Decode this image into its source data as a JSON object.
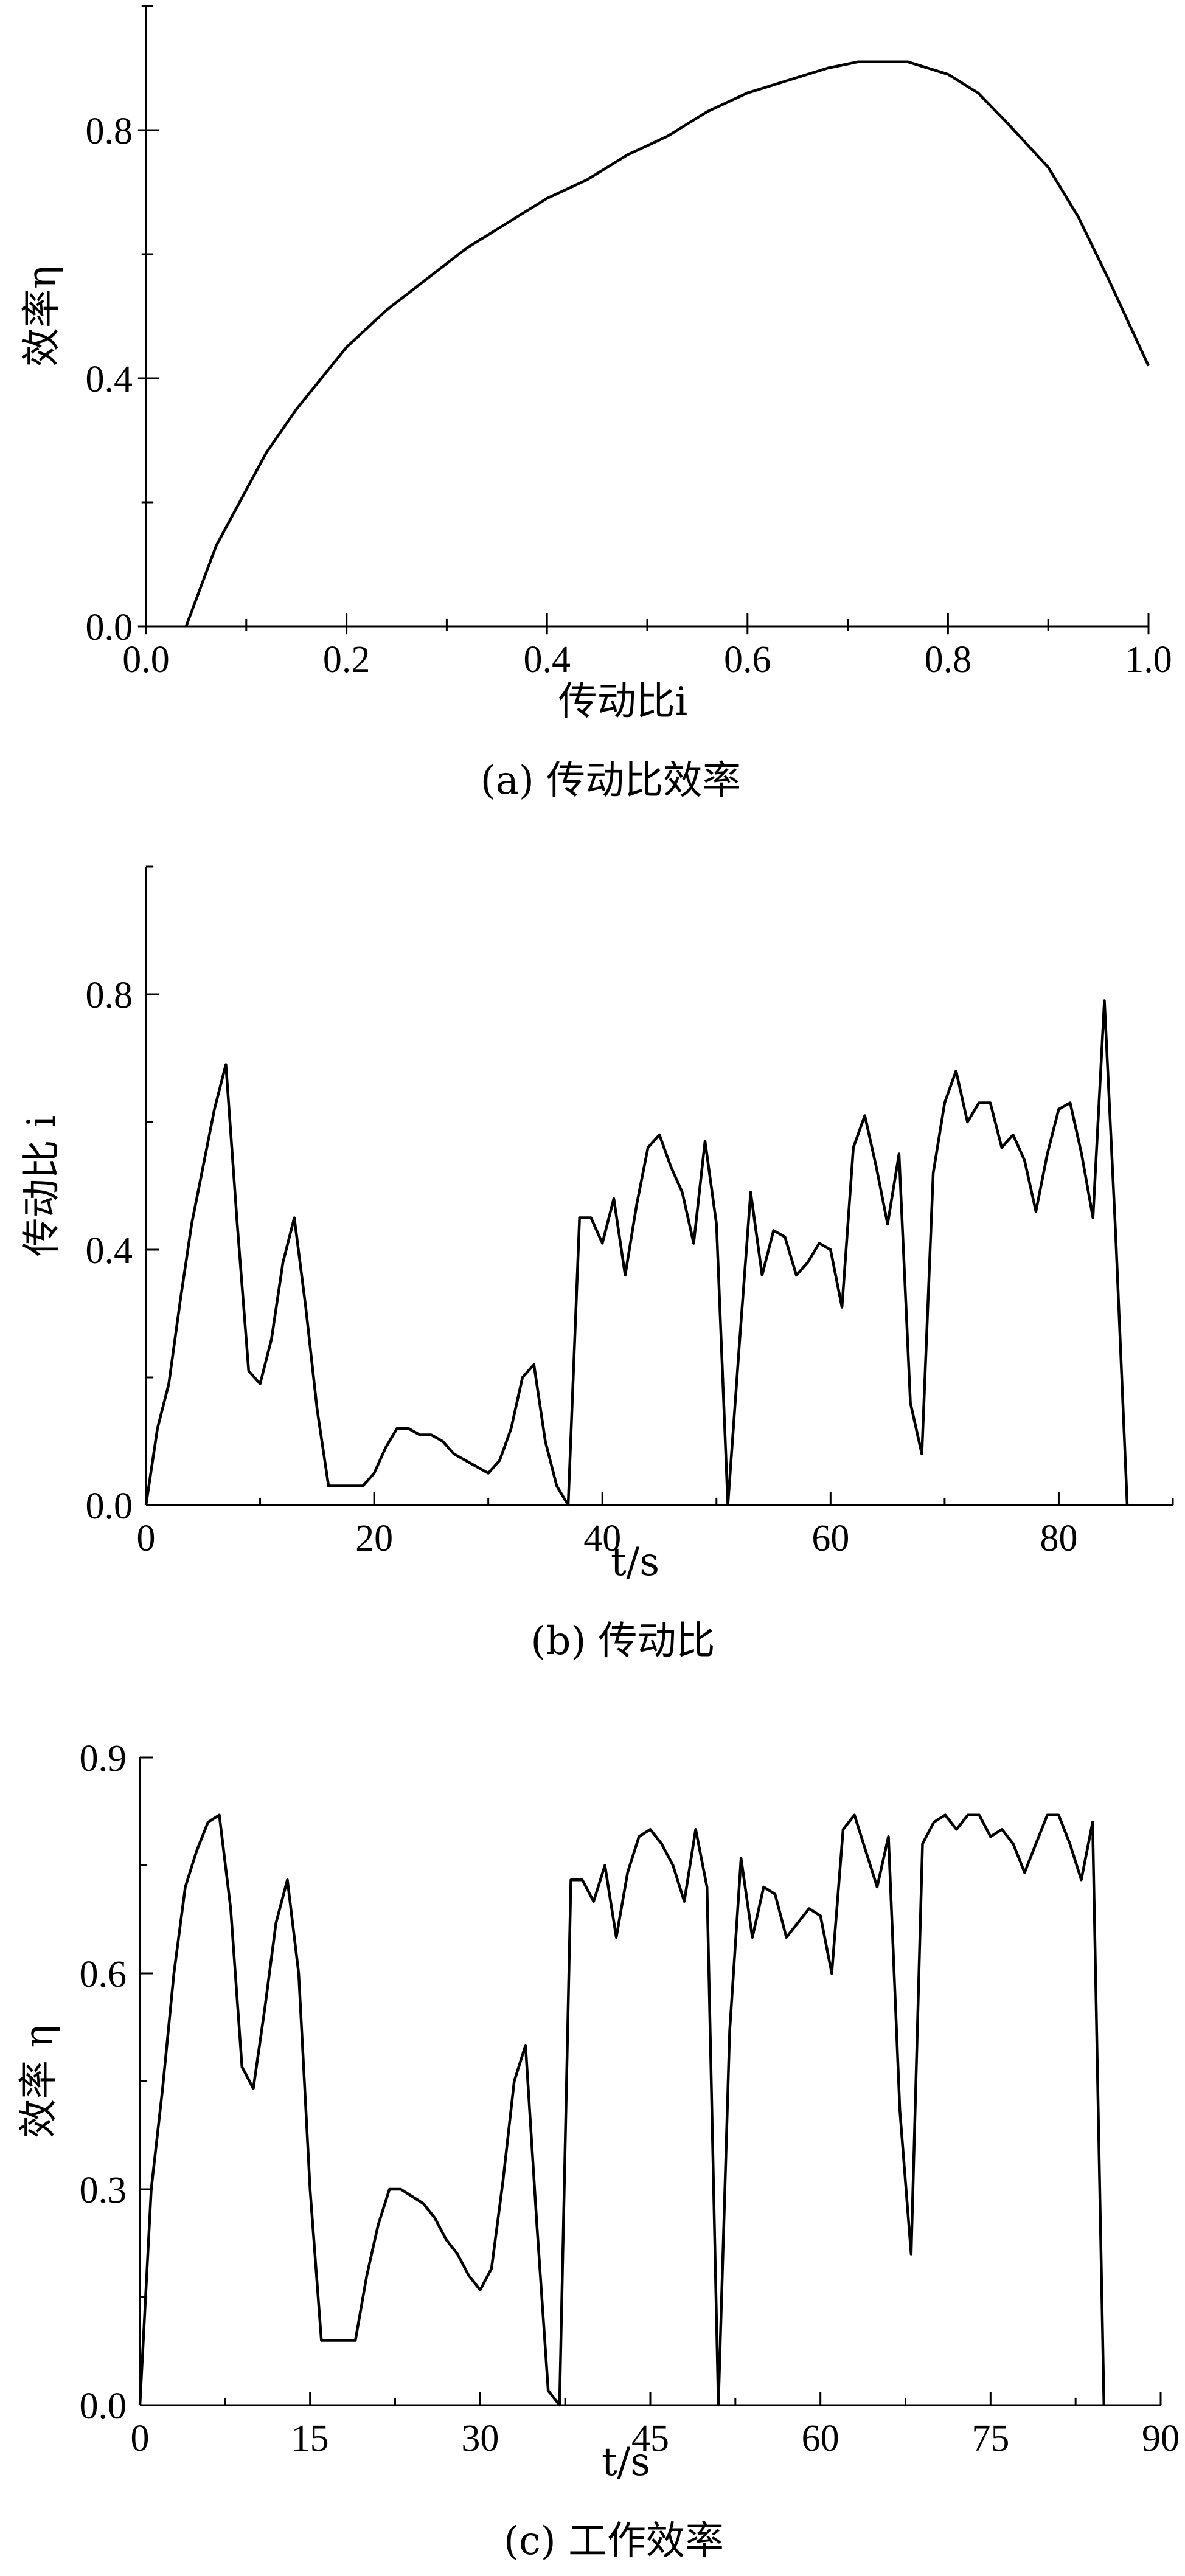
{
  "chart_data": [
    {
      "type": "line",
      "caption": "(a) 传动比效率",
      "xlabel": "传动比i",
      "ylabel": "效率η",
      "xlim": [
        0.0,
        1.0
      ],
      "ylim": [
        0.0,
        1.0
      ],
      "xticks": [
        "0.0",
        "0.2",
        "0.4",
        "0.6",
        "0.8",
        "1.0"
      ],
      "yticks": [
        "0.0",
        "0.4",
        "0.8"
      ],
      "grid": false,
      "x": [
        0.04,
        0.07,
        0.1,
        0.12,
        0.15,
        0.18,
        0.2,
        0.24,
        0.28,
        0.32,
        0.36,
        0.4,
        0.44,
        0.48,
        0.52,
        0.56,
        0.6,
        0.64,
        0.68,
        0.71,
        0.74,
        0.76,
        0.8,
        0.83,
        0.86,
        0.9,
        0.93,
        0.96,
        0.98,
        1.0
      ],
      "values": [
        0.0,
        0.13,
        0.22,
        0.28,
        0.35,
        0.41,
        0.45,
        0.51,
        0.56,
        0.61,
        0.65,
        0.69,
        0.72,
        0.76,
        0.79,
        0.83,
        0.86,
        0.88,
        0.9,
        0.91,
        0.91,
        0.91,
        0.89,
        0.86,
        0.81,
        0.74,
        0.66,
        0.56,
        0.49,
        0.42
      ]
    },
    {
      "type": "line",
      "caption": "(b) 传动比",
      "xlabel": "t/s",
      "ylabel": "传动比 i",
      "xlim": [
        0,
        90
      ],
      "ylim": [
        0.0,
        1.0
      ],
      "xticks": [
        "0",
        "20",
        "40",
        "60",
        "80"
      ],
      "yticks": [
        "0.0",
        "0.4",
        "0.8"
      ],
      "grid": false,
      "x": [
        0,
        1,
        2,
        3,
        4,
        5,
        6,
        7,
        8,
        9,
        10,
        11,
        12,
        13,
        14,
        15,
        16,
        17,
        18,
        19,
        20,
        21,
        22,
        23,
        24,
        25,
        26,
        27,
        28,
        29,
        30,
        31,
        32,
        33,
        34,
        35,
        36,
        37,
        38,
        39,
        40,
        41,
        42,
        43,
        44,
        45,
        46,
        47,
        48,
        49,
        50,
        51,
        52,
        53,
        54,
        55,
        56,
        57,
        58,
        59,
        60,
        61,
        62,
        63,
        64,
        65,
        66,
        67,
        68,
        69,
        70,
        71,
        72,
        73,
        74,
        75,
        76,
        77,
        78,
        79,
        80,
        81,
        82,
        83,
        84,
        85,
        86
      ],
      "values": [
        0.0,
        0.12,
        0.19,
        0.32,
        0.44,
        0.53,
        0.62,
        0.69,
        0.44,
        0.21,
        0.19,
        0.26,
        0.38,
        0.45,
        0.31,
        0.15,
        0.03,
        0.03,
        0.03,
        0.03,
        0.05,
        0.09,
        0.12,
        0.12,
        0.11,
        0.11,
        0.1,
        0.08,
        0.07,
        0.06,
        0.05,
        0.07,
        0.12,
        0.2,
        0.22,
        0.1,
        0.03,
        0.0,
        0.45,
        0.45,
        0.41,
        0.48,
        0.36,
        0.47,
        0.56,
        0.58,
        0.53,
        0.49,
        0.41,
        0.57,
        0.44,
        0.0,
        0.25,
        0.49,
        0.36,
        0.43,
        0.42,
        0.36,
        0.38,
        0.41,
        0.4,
        0.31,
        0.56,
        0.61,
        0.53,
        0.44,
        0.55,
        0.16,
        0.08,
        0.52,
        0.63,
        0.68,
        0.6,
        0.63,
        0.63,
        0.56,
        0.58,
        0.54,
        0.46,
        0.55,
        0.62,
        0.63,
        0.55,
        0.45,
        0.79,
        0.42,
        0.0
      ]
    },
    {
      "type": "line",
      "caption": "(c) 工作效率",
      "xlabel": "t/s",
      "ylabel": "效率 η",
      "xlim": [
        0,
        90
      ],
      "ylim": [
        0.0,
        0.9
      ],
      "xticks": [
        "0",
        "15",
        "30",
        "45",
        "60",
        "75",
        "90"
      ],
      "yticks": [
        "0.0",
        "0.3",
        "0.6",
        "0.9"
      ],
      "grid": false,
      "x": [
        0,
        1,
        2,
        3,
        4,
        5,
        6,
        7,
        8,
        9,
        10,
        11,
        12,
        13,
        14,
        15,
        16,
        17,
        18,
        19,
        20,
        21,
        22,
        23,
        24,
        25,
        26,
        27,
        28,
        29,
        30,
        31,
        32,
        33,
        34,
        35,
        36,
        37,
        38,
        39,
        40,
        41,
        42,
        43,
        44,
        45,
        46,
        47,
        48,
        49,
        50,
        51,
        52,
        53,
        54,
        55,
        56,
        57,
        58,
        59,
        60,
        61,
        62,
        63,
        64,
        65,
        66,
        67,
        68,
        69,
        70,
        71,
        72,
        73,
        74,
        75,
        76,
        77,
        78,
        79,
        80,
        81,
        82,
        83,
        84,
        85
      ],
      "values": [
        0.0,
        0.3,
        0.44,
        0.6,
        0.72,
        0.77,
        0.81,
        0.82,
        0.69,
        0.47,
        0.44,
        0.55,
        0.67,
        0.73,
        0.6,
        0.3,
        0.09,
        0.09,
        0.09,
        0.09,
        0.18,
        0.25,
        0.3,
        0.3,
        0.29,
        0.28,
        0.26,
        0.23,
        0.21,
        0.18,
        0.16,
        0.19,
        0.31,
        0.45,
        0.5,
        0.25,
        0.02,
        0.0,
        0.73,
        0.73,
        0.7,
        0.75,
        0.65,
        0.74,
        0.79,
        0.8,
        0.78,
        0.75,
        0.7,
        0.8,
        0.72,
        0.0,
        0.52,
        0.76,
        0.65,
        0.72,
        0.71,
        0.65,
        0.67,
        0.69,
        0.68,
        0.6,
        0.8,
        0.82,
        0.77,
        0.72,
        0.79,
        0.41,
        0.21,
        0.78,
        0.81,
        0.82,
        0.8,
        0.82,
        0.82,
        0.79,
        0.8,
        0.78,
        0.74,
        0.78,
        0.82,
        0.82,
        0.78,
        0.73,
        0.81,
        0.0
      ]
    }
  ]
}
